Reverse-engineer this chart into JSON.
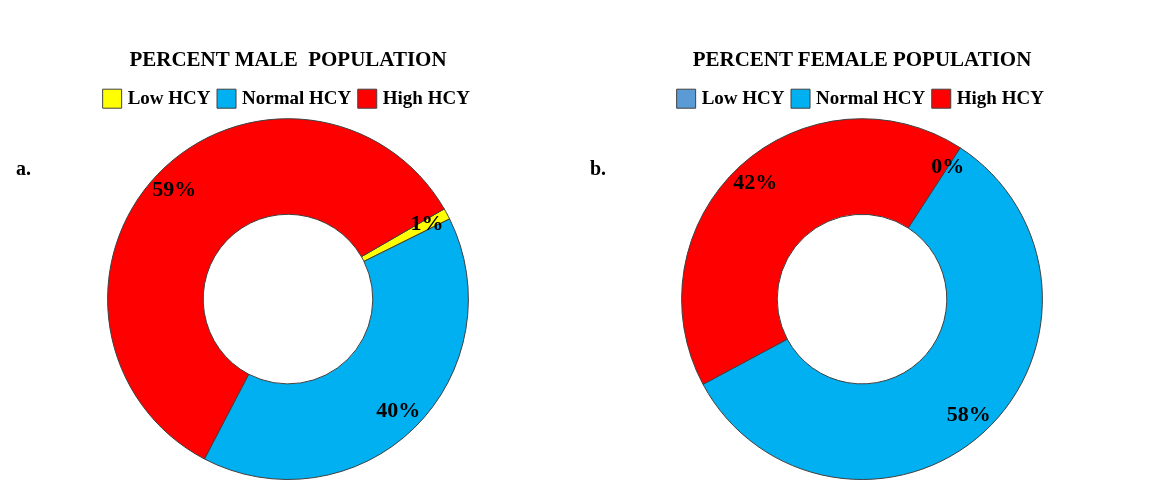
{
  "chart_data": [
    {
      "type": "donut",
      "title": "PERCENT MALE  POPULATION",
      "categories": [
        "Low HCY",
        "Normal HCY",
        "High HCY"
      ],
      "values": [
        1,
        40,
        59
      ],
      "colors": [
        "#ffff00",
        "#00b0f0",
        "#ff0000"
      ],
      "value_labels": [
        "1%",
        "40%",
        "59%"
      ],
      "legend": "top",
      "annotations": [
        "a."
      ]
    },
    {
      "type": "donut",
      "title": "PERCENT FEMALE POPULATION",
      "categories": [
        "Low HCY",
        "Normal HCY",
        "High HCY"
      ],
      "values": [
        0,
        58,
        42
      ],
      "colors": [
        "#5b9bd5",
        "#00b0f0",
        "#ff0000"
      ],
      "value_labels": [
        "0%",
        "58%",
        "42%"
      ],
      "legend": "top",
      "annotations": [
        "b."
      ]
    }
  ]
}
